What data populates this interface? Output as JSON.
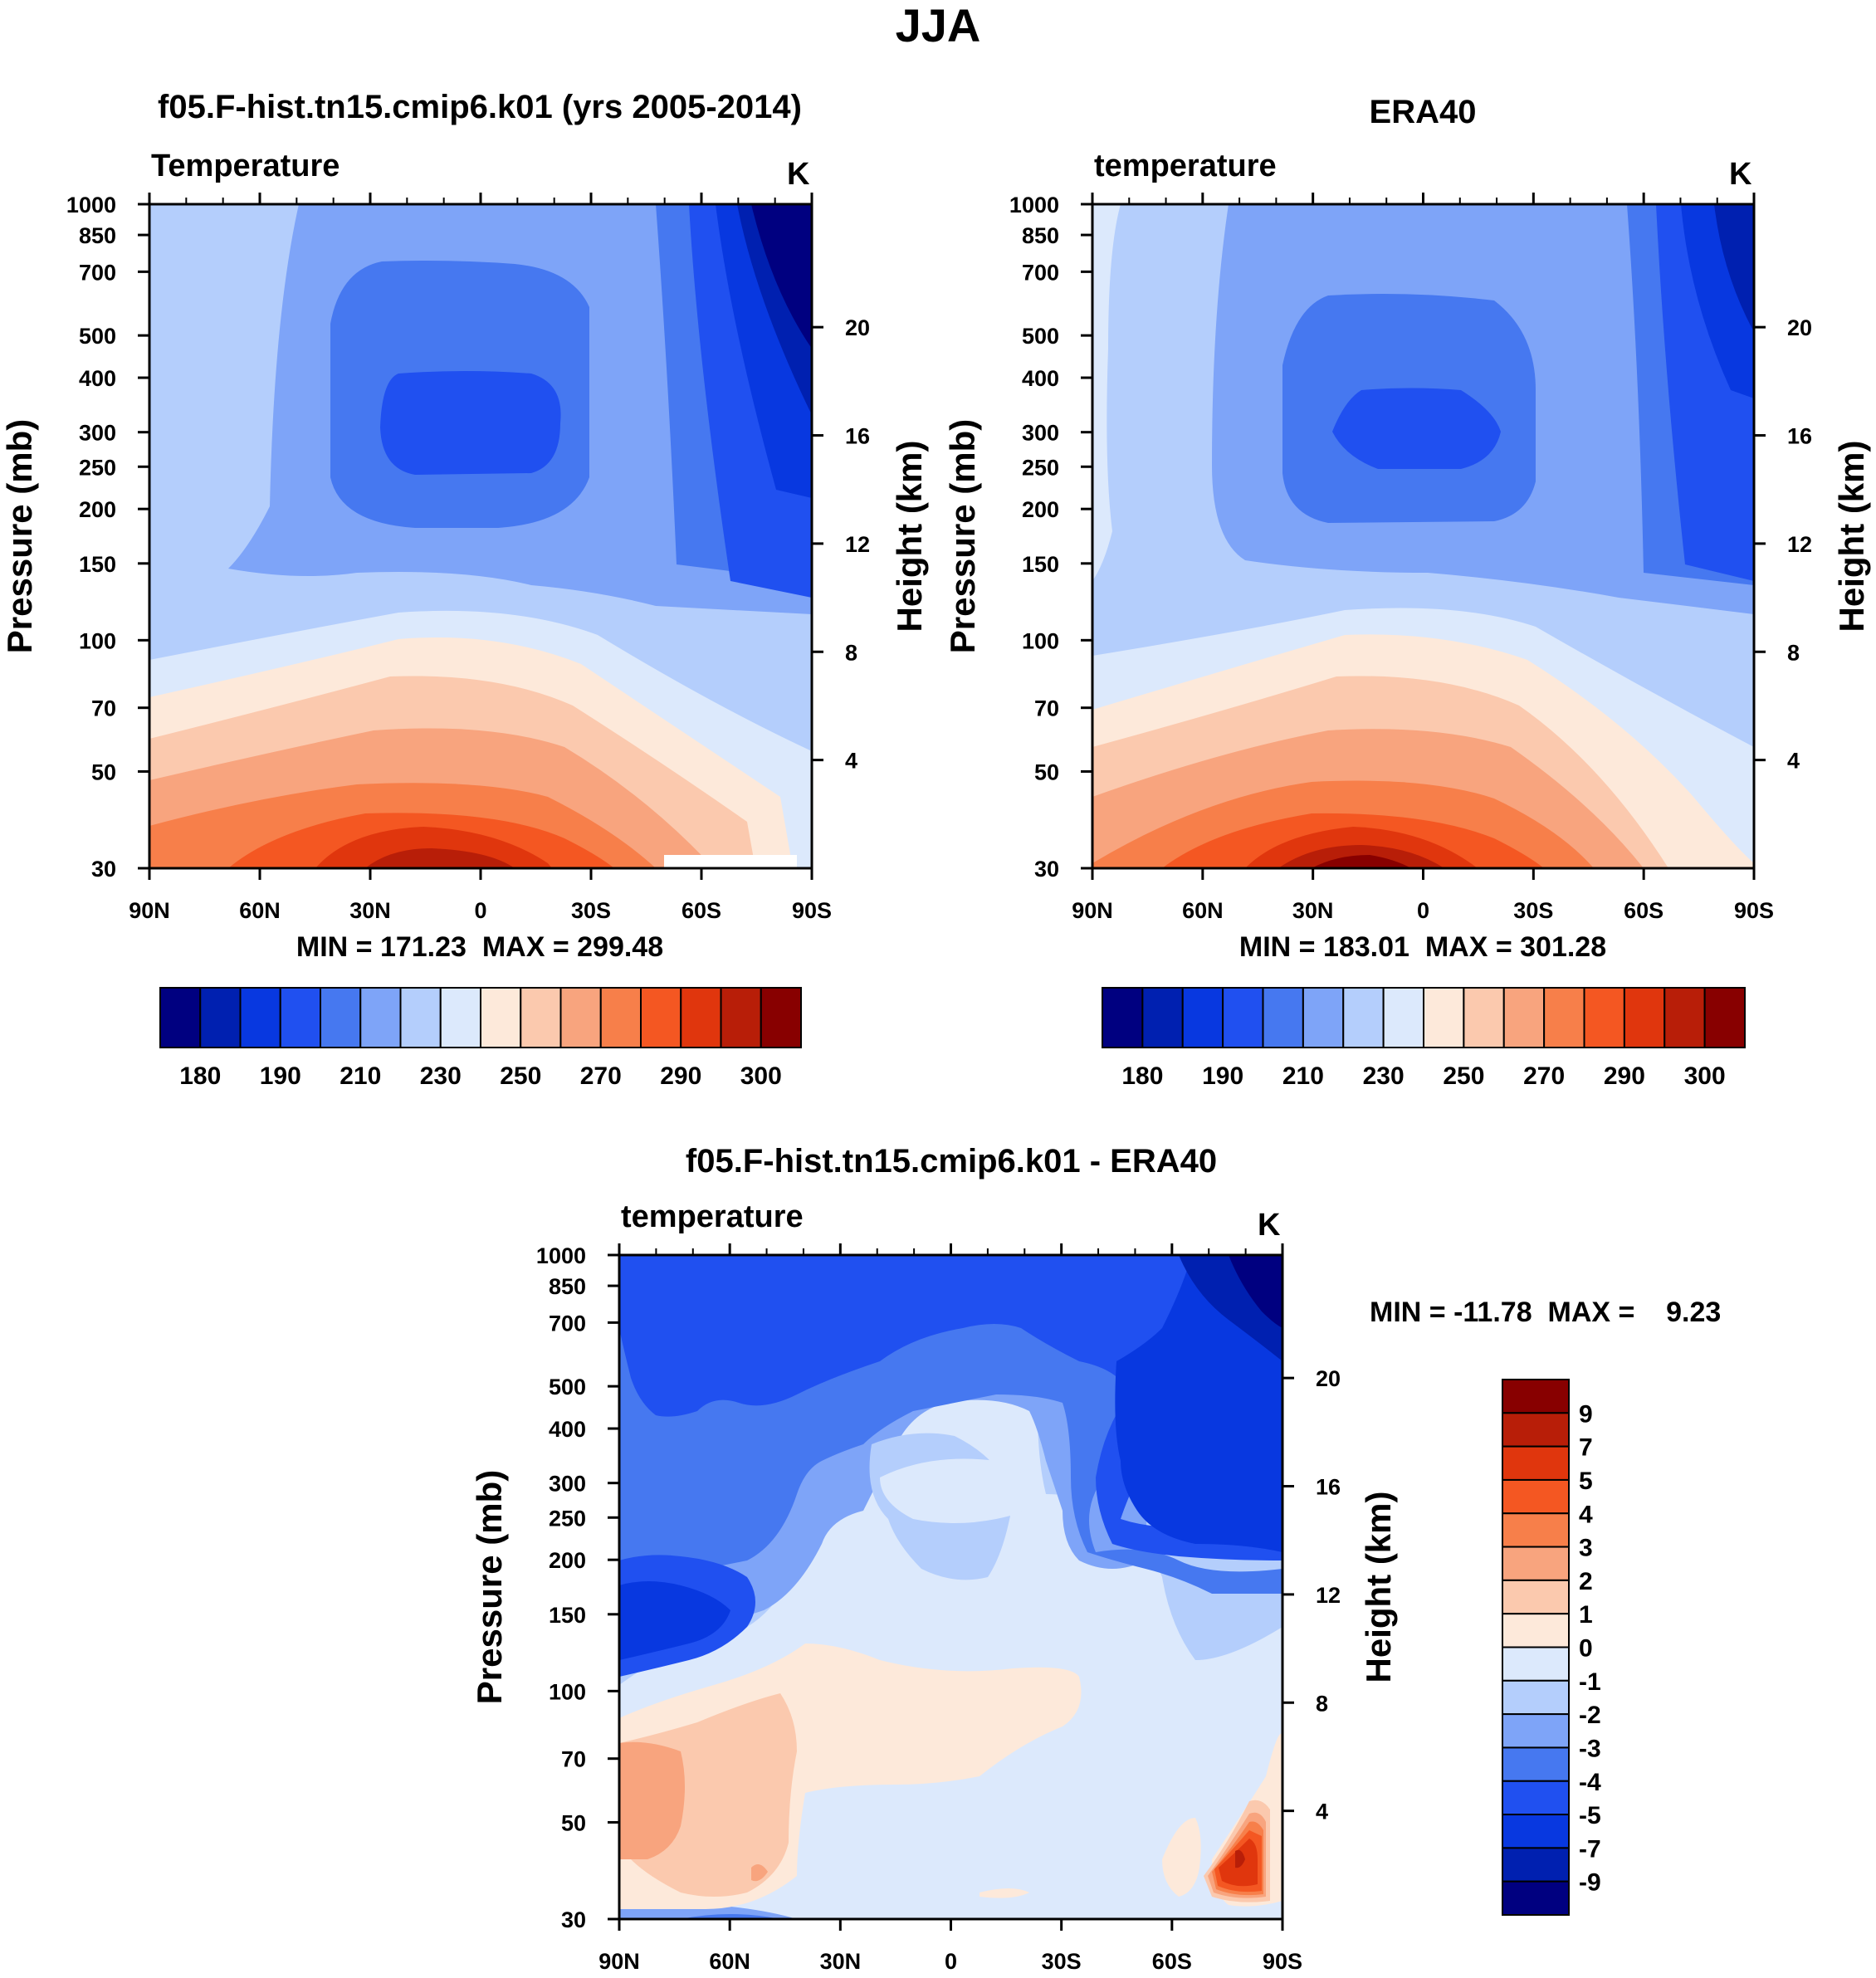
{
  "main_title": "JJA",
  "panels": [
    {
      "title": "f05.F-hist.tn15.cmip6.k01 (yrs 2005-2014)",
      "left_label": "Temperature",
      "units": "K",
      "ylabel": "Pressure (mb)",
      "y2label": "Height (km)",
      "stats": "MIN = 171.23  MAX = 299.48"
    },
    {
      "title": "ERA40",
      "left_label": "temperature",
      "units": "K",
      "ylabel": "Pressure (mb)",
      "y2label": "Height (km)",
      "stats": "MIN = 183.01  MAX = 301.28"
    },
    {
      "title": "f05.F-hist.tn15.cmip6.k01 - ERA40",
      "left_label": "temperature",
      "units": "K",
      "ylabel": "Pressure (mb)",
      "y2label": "Height (km)",
      "stats": "MIN = -11.78  MAX =    9.23"
    }
  ],
  "chart_data": [
    {
      "type": "heatmap",
      "panel": 0,
      "x_ticks": [
        "90N",
        "60N",
        "30N",
        "0",
        "30S",
        "60S",
        "90S"
      ],
      "y_ticks": [
        30,
        50,
        70,
        100,
        150,
        200,
        250,
        300,
        400,
        500,
        700,
        850,
        1000
      ],
      "y2_ticks": [
        20,
        16,
        12,
        8,
        4
      ],
      "y_scale": "log",
      "ylim": [
        1000,
        30
      ],
      "contour_levels": [
        180,
        185,
        190,
        200,
        210,
        220,
        230,
        240,
        250,
        260,
        270,
        280,
        290,
        295,
        300
      ],
      "colorbar_labels": [
        "180",
        "190",
        "210",
        "230",
        "250",
        "270",
        "290",
        "300"
      ],
      "colors": [
        "#000080",
        "#0020b0",
        "#0838e0",
        "#2050f0",
        "#4678f0",
        "#7ea4f8",
        "#b4cefc",
        "#dce9fc",
        "#fde9da",
        "#fbc9ae",
        "#f8a47e",
        "#f77f4a",
        "#f45722",
        "#e0360d",
        "#b81e08",
        "#880000"
      ],
      "min": 171.23,
      "max": 299.48
    },
    {
      "type": "heatmap",
      "panel": 1,
      "x_ticks": [
        "90N",
        "60N",
        "30N",
        "0",
        "30S",
        "60S",
        "90S"
      ],
      "y_ticks": [
        30,
        50,
        70,
        100,
        150,
        200,
        250,
        300,
        400,
        500,
        700,
        850,
        1000
      ],
      "y2_ticks": [
        20,
        16,
        12,
        8,
        4
      ],
      "y_scale": "log",
      "ylim": [
        1000,
        30
      ],
      "contour_levels": [
        180,
        185,
        190,
        200,
        210,
        220,
        230,
        240,
        250,
        260,
        270,
        280,
        290,
        295,
        300
      ],
      "colorbar_labels": [
        "180",
        "190",
        "210",
        "230",
        "250",
        "270",
        "290",
        "300"
      ],
      "colors": [
        "#000080",
        "#0020b0",
        "#0838e0",
        "#2050f0",
        "#4678f0",
        "#7ea4f8",
        "#b4cefc",
        "#dce9fc",
        "#fde9da",
        "#fbc9ae",
        "#f8a47e",
        "#f77f4a",
        "#f45722",
        "#e0360d",
        "#b81e08",
        "#880000"
      ],
      "min": 183.01,
      "max": 301.28
    },
    {
      "type": "heatmap",
      "panel": 2,
      "x_ticks": [
        "90N",
        "60N",
        "30N",
        "0",
        "30S",
        "60S",
        "90S"
      ],
      "y_ticks": [
        30,
        50,
        70,
        100,
        150,
        200,
        250,
        300,
        400,
        500,
        700,
        850,
        1000
      ],
      "y2_ticks": [
        20,
        16,
        12,
        8,
        4
      ],
      "y_scale": "log",
      "ylim": [
        1000,
        30
      ],
      "contour_levels": [
        -9,
        -7,
        -5,
        -4,
        -3,
        -2,
        -1,
        0,
        1,
        2,
        3,
        4,
        5,
        7,
        9
      ],
      "colorbar_labels": [
        "9",
        "7",
        "5",
        "4",
        "3",
        "2",
        "1",
        "0",
        "-1",
        "-2",
        "-3",
        "-4",
        "-5",
        "-7",
        "-9"
      ],
      "colors": [
        "#000080",
        "#0020b0",
        "#0838e0",
        "#2050f0",
        "#4678f0",
        "#7ea4f8",
        "#b4cefc",
        "#dce9fc",
        "#fde9da",
        "#fbc9ae",
        "#f8a47e",
        "#f77f4a",
        "#f45722",
        "#e0360d",
        "#b81e08",
        "#880000"
      ],
      "min": -11.78,
      "max": 9.23
    }
  ]
}
